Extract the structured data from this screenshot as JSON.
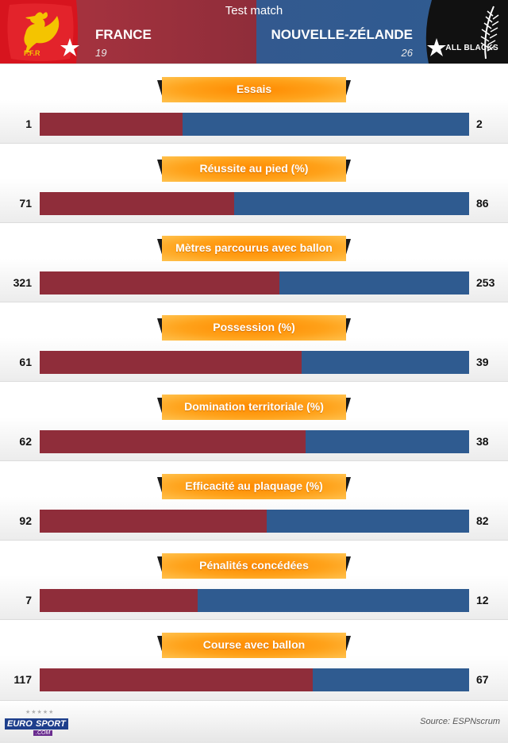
{
  "header": {
    "title": "Test match",
    "team_left": "FRANCE",
    "team_right": "NOUVELLE-ZÉLANDE",
    "score_left": "19",
    "score_right": "26",
    "logo_left_text": "F.F.R",
    "logo_right_text": "ALL BLACKS",
    "color_left": "#8f2d3a",
    "color_right": "#2f5b90"
  },
  "chart_data": {
    "type": "bar",
    "orientation": "horizontal-split",
    "series": [
      {
        "name": "FRANCE",
        "color": "#8f2d3a"
      },
      {
        "name": "NOUVELLE-ZÉLANDE",
        "color": "#2f5b90"
      }
    ],
    "categories": [
      "Essais",
      "Réussite au pied (%)",
      "Mètres parcourus avec ballon",
      "Possession (%)",
      "Domination territoriale (%)",
      "Efficacité au plaquage (%)",
      "Pénalités concédées",
      "Course avec ballon"
    ],
    "rows": [
      {
        "label": "Essais",
        "left": "1",
        "right": "2",
        "left_value": 1,
        "right_value": 2
      },
      {
        "label": "Réussite au pied (%)",
        "left": "71",
        "right": "86",
        "left_value": 71,
        "right_value": 86
      },
      {
        "label": "Mètres parcourus avec ballon",
        "left": "321",
        "right": "253",
        "left_value": 321,
        "right_value": 253
      },
      {
        "label": "Possession (%)",
        "left": "61",
        "right": "39",
        "left_value": 61,
        "right_value": 39
      },
      {
        "label": "Domination territoriale (%)",
        "left": "62",
        "right": "38",
        "left_value": 62,
        "right_value": 38
      },
      {
        "label": "Efficacité au plaquage (%)",
        "left": "92",
        "right": "82",
        "left_value": 92,
        "right_value": 82
      },
      {
        "label": "Pénalités concédées",
        "left": "7",
        "right": "12",
        "left_value": 7,
        "right_value": 12
      },
      {
        "label": "Course avec ballon",
        "left": "117",
        "right": "67",
        "left_value": 117,
        "right_value": 67
      }
    ],
    "left_share": [
      0.333,
      0.452,
      0.559,
      0.61,
      0.62,
      0.529,
      0.368,
      0.636
    ]
  },
  "footer": {
    "brand_left": "EURO",
    "brand_right": "SPORT",
    "brand_suffix": ".COM",
    "source": "Source: ESPNscrum"
  }
}
